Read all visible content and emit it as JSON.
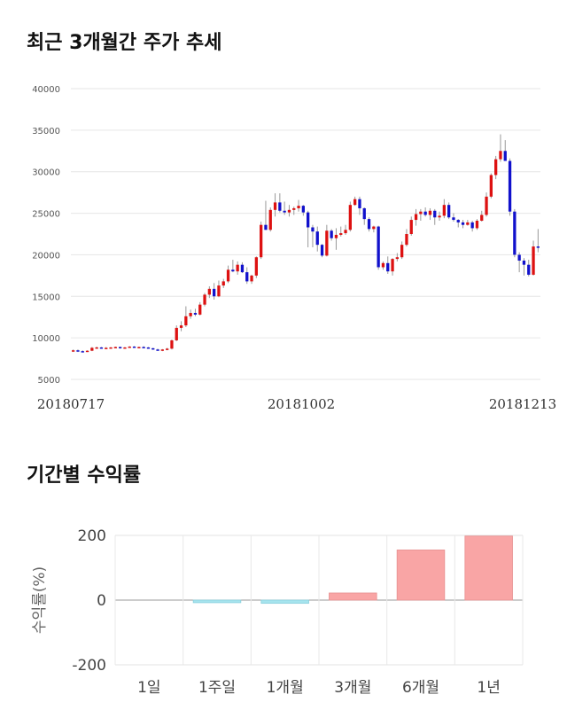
{
  "sections": {
    "price_title": "최근 3개월간 주가 추세",
    "return_title": "기간별 수익률"
  },
  "chart_data": [
    {
      "type": "candlestick",
      "ylim": [
        5000,
        40000
      ],
      "yticks": [
        "40000",
        "35000",
        "30000",
        "25000",
        "20000",
        "15000",
        "10000",
        "5000"
      ],
      "xticks": [
        "20180717",
        "20181002",
        "20181213"
      ],
      "grid": true,
      "up_color": "#dd1111",
      "down_color": "#1111cc",
      "ohlc": [
        [
          8400,
          8600,
          8300,
          8500
        ],
        [
          8500,
          8600,
          8300,
          8400
        ],
        [
          8400,
          8500,
          8300,
          8350
        ],
        [
          8350,
          8500,
          8300,
          8450
        ],
        [
          8450,
          8900,
          8400,
          8800
        ],
        [
          8800,
          8950,
          8700,
          8850
        ],
        [
          8850,
          8900,
          8700,
          8750
        ],
        [
          8750,
          8900,
          8700,
          8800
        ],
        [
          8800,
          8900,
          8700,
          8850
        ],
        [
          8850,
          8950,
          8750,
          8900
        ],
        [
          8900,
          8950,
          8700,
          8750
        ],
        [
          8750,
          8900,
          8700,
          8850
        ],
        [
          8850,
          9000,
          8800,
          8950
        ],
        [
          8950,
          9000,
          8800,
          8850
        ],
        [
          8850,
          8950,
          8750,
          8900
        ],
        [
          8900,
          9000,
          8800,
          8850
        ],
        [
          8850,
          8900,
          8700,
          8750
        ],
        [
          8750,
          8800,
          8550,
          8600
        ],
        [
          8600,
          8700,
          8450,
          8500
        ],
        [
          8500,
          8650,
          8400,
          8600
        ],
        [
          8600,
          8800,
          8500,
          8700
        ],
        [
          8700,
          9800,
          8600,
          9700
        ],
        [
          9700,
          11500,
          9600,
          11200
        ],
        [
          11200,
          12000,
          10800,
          11500
        ],
        [
          11500,
          13800,
          11300,
          12600
        ],
        [
          12600,
          13400,
          12300,
          13000
        ],
        [
          13000,
          13500,
          12600,
          12800
        ],
        [
          12800,
          14300,
          12700,
          14000
        ],
        [
          14000,
          15400,
          13800,
          15200
        ],
        [
          15200,
          16200,
          14800,
          15900
        ],
        [
          15900,
          16600,
          14600,
          15000
        ],
        [
          15000,
          16900,
          14900,
          16300
        ],
        [
          16300,
          17100,
          16000,
          16800
        ],
        [
          16800,
          18700,
          16600,
          18200
        ],
        [
          18200,
          19400,
          17900,
          18000
        ],
        [
          18000,
          19200,
          17600,
          18800
        ],
        [
          18800,
          19100,
          17800,
          17900
        ],
        [
          17900,
          18500,
          16500,
          16800
        ],
        [
          16800,
          17600,
          16500,
          17500
        ],
        [
          17500,
          19800,
          17200,
          19700
        ],
        [
          19700,
          24000,
          19500,
          23600
        ],
        [
          23600,
          26500,
          23000,
          23000
        ],
        [
          23000,
          25700,
          22800,
          25400
        ],
        [
          25400,
          27400,
          24600,
          26300
        ],
        [
          26300,
          27400,
          25100,
          25300
        ],
        [
          25300,
          26400,
          24800,
          25100
        ],
        [
          25100,
          26000,
          24600,
          25400
        ],
        [
          25400,
          25800,
          24800,
          25600
        ],
        [
          25600,
          26600,
          25200,
          25900
        ],
        [
          25900,
          26000,
          24700,
          25100
        ],
        [
          25100,
          25300,
          20900,
          23300
        ],
        [
          23300,
          23600,
          20900,
          22800
        ],
        [
          22800,
          23400,
          20400,
          21200
        ],
        [
          21200,
          21300,
          19700,
          19900
        ],
        [
          19900,
          23600,
          19800,
          22900
        ],
        [
          22900,
          23100,
          21700,
          22000
        ],
        [
          22000,
          23200,
          20600,
          22400
        ],
        [
          22400,
          23400,
          22200,
          22600
        ],
        [
          22600,
          23600,
          22400,
          23000
        ],
        [
          23000,
          26400,
          22800,
          26000
        ],
        [
          26000,
          27000,
          25900,
          26700
        ],
        [
          26700,
          27000,
          24800,
          25600
        ],
        [
          25600,
          25700,
          23600,
          24300
        ],
        [
          24300,
          24500,
          22800,
          23100
        ],
        [
          23100,
          23500,
          22700,
          23400
        ],
        [
          23400,
          23500,
          18200,
          18500
        ],
        [
          18500,
          19200,
          18200,
          19000
        ],
        [
          19000,
          19800,
          17700,
          18000
        ],
        [
          18000,
          19600,
          17500,
          19500
        ],
        [
          19500,
          20200,
          19200,
          19700
        ],
        [
          19700,
          21600,
          19500,
          21200
        ],
        [
          21200,
          23100,
          21000,
          22500
        ],
        [
          22500,
          24600,
          22300,
          24200
        ],
        [
          24200,
          25500,
          23500,
          24900
        ],
        [
          24900,
          25500,
          24100,
          25200
        ],
        [
          25200,
          25700,
          24600,
          24800
        ],
        [
          24800,
          25600,
          24200,
          25300
        ],
        [
          25300,
          25500,
          23600,
          24500
        ],
        [
          24500,
          25200,
          24100,
          24700
        ],
        [
          24700,
          26700,
          24400,
          26000
        ],
        [
          26000,
          26300,
          24300,
          24500
        ],
        [
          24500,
          25000,
          24000,
          24200
        ],
        [
          24200,
          24300,
          23300,
          23900
        ],
        [
          23900,
          24200,
          23200,
          23600
        ],
        [
          23600,
          24200,
          23500,
          23900
        ],
        [
          23900,
          24100,
          22800,
          23200
        ],
        [
          23200,
          24300,
          23000,
          24100
        ],
        [
          24100,
          25300,
          24000,
          24800
        ],
        [
          24800,
          27500,
          24600,
          27000
        ],
        [
          27000,
          29800,
          26800,
          29600
        ],
        [
          29600,
          31900,
          29100,
          31500
        ],
        [
          31500,
          34500,
          31200,
          32500
        ],
        [
          32500,
          33800,
          31600,
          31300
        ],
        [
          31300,
          31600,
          24700,
          25200
        ],
        [
          25200,
          25500,
          19700,
          20000
        ],
        [
          20000,
          20300,
          17900,
          19300
        ],
        [
          19300,
          19600,
          17500,
          18800
        ],
        [
          18800,
          19400,
          17400,
          17600
        ],
        [
          17600,
          21700,
          17500,
          21000
        ],
        [
          21000,
          23100,
          20300,
          20900
        ]
      ]
    },
    {
      "type": "bar",
      "categories": [
        "1일",
        "1주일",
        "1개월",
        "3개월",
        "6개월",
        "1년"
      ],
      "values": [
        0,
        -8,
        -10,
        22,
        155,
        198
      ],
      "ylim": [
        -200,
        200
      ],
      "yticks": [
        "200",
        "0",
        "-200"
      ],
      "ylabel": "수익률(%)",
      "grid": true,
      "positive_color": "#f9a5a5",
      "negative_color": "#a6e4ee"
    }
  ]
}
